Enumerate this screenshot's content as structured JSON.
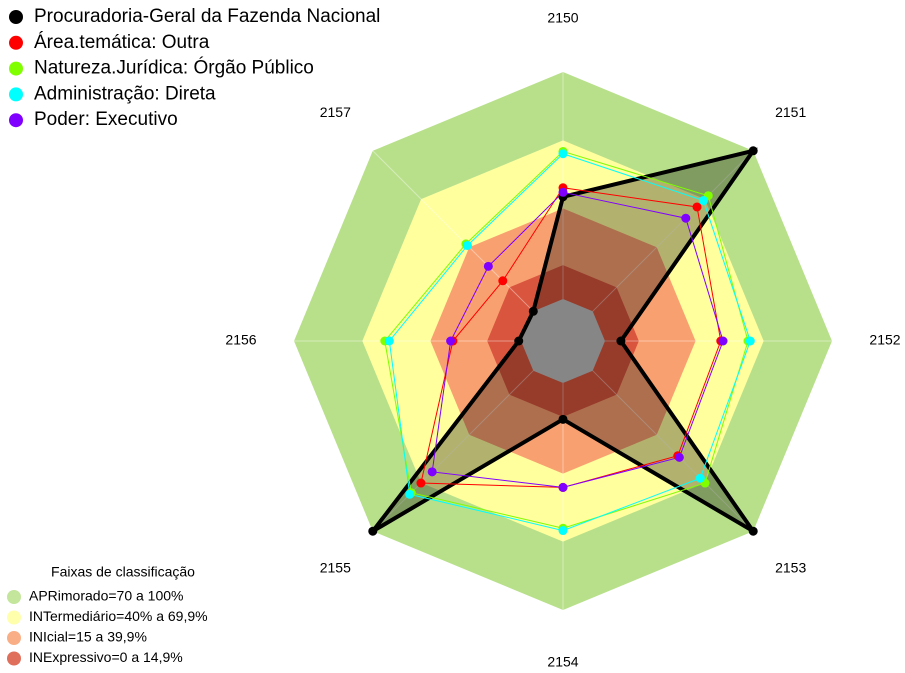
{
  "chart_data": {
    "type": "radar",
    "categories": [
      "2150",
      "2151",
      "2152",
      "2153",
      "2154",
      "2155",
      "2156",
      "2157"
    ],
    "rlim": [
      0,
      100
    ],
    "bands_title": "Faixas de classificação",
    "bands": [
      {
        "label": "APRimorado=70 a 100%",
        "color": "#b8e08b",
        "range": [
          70,
          100
        ]
      },
      {
        "label": "INTermediário=40% a 69,9%",
        "color": "#ffff9e",
        "range": [
          40,
          69.9
        ]
      },
      {
        "label": "INIcial=15 a 39,9%",
        "color": "#f9a070",
        "range": [
          15,
          39.9
        ]
      },
      {
        "label": "INExpressivo=0 a 14,9%",
        "color": "#d9553d",
        "range": [
          0,
          14.9
        ]
      }
    ],
    "series": [
      {
        "name": "Procuradoria-Geral da Fazenda Nacional",
        "color": "#000000",
        "filled": true,
        "values": [
          45,
          100,
          7,
          100,
          16,
          100,
          1,
          0
        ]
      },
      {
        "name": "Área.temática: Outra",
        "color": "#ff0000",
        "values": [
          49,
          65,
          51,
          53,
          46,
          70,
          30,
          19
        ]
      },
      {
        "name": "Natureza.Jurídica: Órgão Público",
        "color": "#7fff00",
        "values": [
          65,
          72,
          63,
          70,
          64,
          76,
          60,
          42
        ]
      },
      {
        "name": "Administração: Direta",
        "color": "#00ffff",
        "values": [
          64,
          69,
          64,
          67,
          65,
          77,
          58,
          41
        ]
      },
      {
        "name": "Poder: Executivo",
        "color": "#8000ff",
        "values": [
          47,
          58,
          52,
          54,
          46,
          63,
          31,
          28
        ]
      }
    ]
  }
}
